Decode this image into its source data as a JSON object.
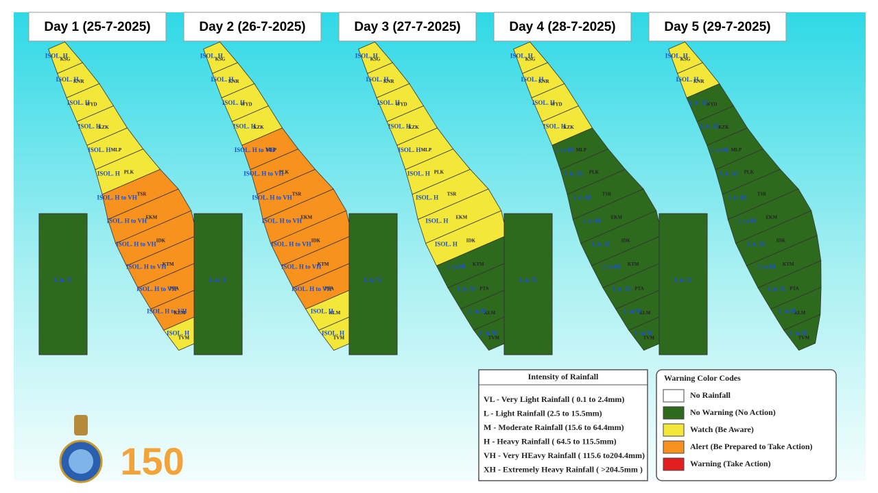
{
  "days": [
    {
      "title": "Day 1 (25-7-2025)",
      "districts": [
        {
          "code": "KSG",
          "warning": "ISOL. H",
          "color": "#f3e83a"
        },
        {
          "code": "KNR",
          "warning": "ISOL. H",
          "color": "#f3e83a"
        },
        {
          "code": "WYD",
          "warning": "ISOL. H",
          "color": "#f3e83a"
        },
        {
          "code": "KZK",
          "warning": "ISOL. H",
          "color": "#f3e83a"
        },
        {
          "code": "MLP",
          "warning": "ISOL. H",
          "color": "#f3e83a"
        },
        {
          "code": "PLK",
          "warning": "ISOL. H",
          "color": "#f3e83a"
        },
        {
          "code": "TSR",
          "warning": "ISOL. H to VH",
          "color": "#f7921e"
        },
        {
          "code": "EKM",
          "warning": "ISOL. H to VH",
          "color": "#f7921e"
        },
        {
          "code": "IDK",
          "warning": "ISOL. H to VH",
          "color": "#f7921e"
        },
        {
          "code": "KTM",
          "warning": "ISOL. H to VH",
          "color": "#f7921e"
        },
        {
          "code": "PTA",
          "warning": "ISOL. H to VH",
          "color": "#f7921e"
        },
        {
          "code": "KLM",
          "warning": "ISOL. H to VH",
          "color": "#f7921e"
        },
        {
          "code": "TVM",
          "warning": "ISOL. H",
          "color": "#f3e83a"
        }
      ],
      "island": {
        "warning": "L to M",
        "color": "#2d6a1e"
      }
    },
    {
      "title": "Day 2 (26-7-2025)",
      "districts": [
        {
          "code": "KSG",
          "warning": "ISOL. H",
          "color": "#f3e83a"
        },
        {
          "code": "KNR",
          "warning": "ISOL. H",
          "color": "#f3e83a"
        },
        {
          "code": "WYD",
          "warning": "ISOL. H",
          "color": "#f3e83a"
        },
        {
          "code": "KZK",
          "warning": "ISOL. H",
          "color": "#f3e83a"
        },
        {
          "code": "MLP",
          "warning": "ISOL. H to VH",
          "color": "#f7921e"
        },
        {
          "code": "PLK",
          "warning": "ISOL. H to VH",
          "color": "#f7921e"
        },
        {
          "code": "TSR",
          "warning": "ISOL. H to VH",
          "color": "#f7921e"
        },
        {
          "code": "EKM",
          "warning": "ISOL. H to VH",
          "color": "#f7921e"
        },
        {
          "code": "IDK",
          "warning": "ISOL. H to VH",
          "color": "#f7921e"
        },
        {
          "code": "KTM",
          "warning": "ISOL. H to VH",
          "color": "#f7921e"
        },
        {
          "code": "PTA",
          "warning": "ISOL. H to VH",
          "color": "#f7921e"
        },
        {
          "code": "KLM",
          "warning": "ISOL. H",
          "color": "#f3e83a"
        },
        {
          "code": "TVM",
          "warning": "ISOL. H",
          "color": "#f3e83a"
        }
      ],
      "island": {
        "warning": "L to M",
        "color": "#2d6a1e"
      }
    },
    {
      "title": "Day 3 (27-7-2025)",
      "districts": [
        {
          "code": "KSG",
          "warning": "ISOL. H",
          "color": "#f3e83a"
        },
        {
          "code": "KNR",
          "warning": "ISOL. H",
          "color": "#f3e83a"
        },
        {
          "code": "WYD",
          "warning": "ISOL. H",
          "color": "#f3e83a"
        },
        {
          "code": "KZK",
          "warning": "ISOL. H",
          "color": "#f3e83a"
        },
        {
          "code": "MLP",
          "warning": "ISOL. H",
          "color": "#f3e83a"
        },
        {
          "code": "PLK",
          "warning": "ISOL. H",
          "color": "#f3e83a"
        },
        {
          "code": "TSR",
          "warning": "ISOL. H",
          "color": "#f3e83a"
        },
        {
          "code": "EKM",
          "warning": "ISOL. H",
          "color": "#f3e83a"
        },
        {
          "code": "IDK",
          "warning": "ISOL. H",
          "color": "#f3e83a"
        },
        {
          "code": "KTM",
          "warning": "L to M",
          "color": "#2d6a1e"
        },
        {
          "code": "PTA",
          "warning": "L to M",
          "color": "#2d6a1e"
        },
        {
          "code": "KLM",
          "warning": "L to M",
          "color": "#2d6a1e"
        },
        {
          "code": "TVM",
          "warning": "L to M",
          "color": "#2d6a1e"
        }
      ],
      "island": {
        "warning": "L to M",
        "color": "#2d6a1e"
      }
    },
    {
      "title": "Day 4 (28-7-2025)",
      "districts": [
        {
          "code": "KSG",
          "warning": "ISOL. H",
          "color": "#f3e83a"
        },
        {
          "code": "KNR",
          "warning": "ISOL. H",
          "color": "#f3e83a"
        },
        {
          "code": "WYD",
          "warning": "ISOL. H",
          "color": "#f3e83a"
        },
        {
          "code": "KZK",
          "warning": "ISOL. H",
          "color": "#f3e83a"
        },
        {
          "code": "MLP",
          "warning": "L to M",
          "color": "#2d6a1e"
        },
        {
          "code": "PLK",
          "warning": "L to M",
          "color": "#2d6a1e"
        },
        {
          "code": "TSR",
          "warning": "L to M",
          "color": "#2d6a1e"
        },
        {
          "code": "EKM",
          "warning": "L to M",
          "color": "#2d6a1e"
        },
        {
          "code": "IDK",
          "warning": "L to M",
          "color": "#2d6a1e"
        },
        {
          "code": "KTM",
          "warning": "L to M",
          "color": "#2d6a1e"
        },
        {
          "code": "PTA",
          "warning": "L to M",
          "color": "#2d6a1e"
        },
        {
          "code": "KLM",
          "warning": "L to M",
          "color": "#2d6a1e"
        },
        {
          "code": "TVM",
          "warning": "L to M",
          "color": "#2d6a1e"
        }
      ],
      "island": {
        "warning": "L to M",
        "color": "#2d6a1e"
      }
    },
    {
      "title": "Day 5 (29-7-2025)",
      "districts": [
        {
          "code": "KSG",
          "warning": "ISOL. H",
          "color": "#f3e83a"
        },
        {
          "code": "KNR",
          "warning": "ISOL. H",
          "color": "#f3e83a"
        },
        {
          "code": "WYD",
          "warning": "L to M",
          "color": "#2d6a1e"
        },
        {
          "code": "KZK",
          "warning": "L to M",
          "color": "#2d6a1e"
        },
        {
          "code": "MLP",
          "warning": "L to M",
          "color": "#2d6a1e"
        },
        {
          "code": "PLK",
          "warning": "L to M",
          "color": "#2d6a1e"
        },
        {
          "code": "TSR",
          "warning": "L to M",
          "color": "#2d6a1e"
        },
        {
          "code": "EKM",
          "warning": "L to M",
          "color": "#2d6a1e"
        },
        {
          "code": "IDK",
          "warning": "L to M",
          "color": "#2d6a1e"
        },
        {
          "code": "KTM",
          "warning": "L to M",
          "color": "#2d6a1e"
        },
        {
          "code": "PTA",
          "warning": "L to M",
          "color": "#2d6a1e"
        },
        {
          "code": "KLM",
          "warning": "L to M",
          "color": "#2d6a1e"
        },
        {
          "code": "TVM",
          "warning": "L to M",
          "color": "#2d6a1e"
        }
      ],
      "island": {
        "warning": "L to M",
        "color": "#2d6a1e"
      }
    }
  ],
  "intensity": {
    "title": "Intensity of Rainfall",
    "items": [
      "VL - Very Light Rainfall ( 0.1 to 2.4mm)",
      "L  - Light Rainfall (2.5 to 15.5mm)",
      "M  - Moderate Rainfall (15.6 to 64.4mm)",
      "H  - Heavy Rainfall ( 64.5 to 115.5mm)",
      "VH - Very HEavy Rainfall ( 115.6 to204.4mm)",
      "XH - Extremely Heavy Rainfall ( >204.5mm )"
    ]
  },
  "codes": {
    "title": "Warning Color Codes",
    "items": [
      {
        "label": "No Rainfall",
        "color": "#ffffff"
      },
      {
        "label": "No Warning (No Action)",
        "color": "#2d6a1e"
      },
      {
        "label": "Watch (Be Aware)",
        "color": "#f3e83a"
      },
      {
        "label": "Alert (Be Prepared to Take Action)",
        "color": "#f7921e"
      },
      {
        "label": "Warning (Take Action)",
        "color": "#e21e1e"
      }
    ]
  },
  "logo_text": "150"
}
